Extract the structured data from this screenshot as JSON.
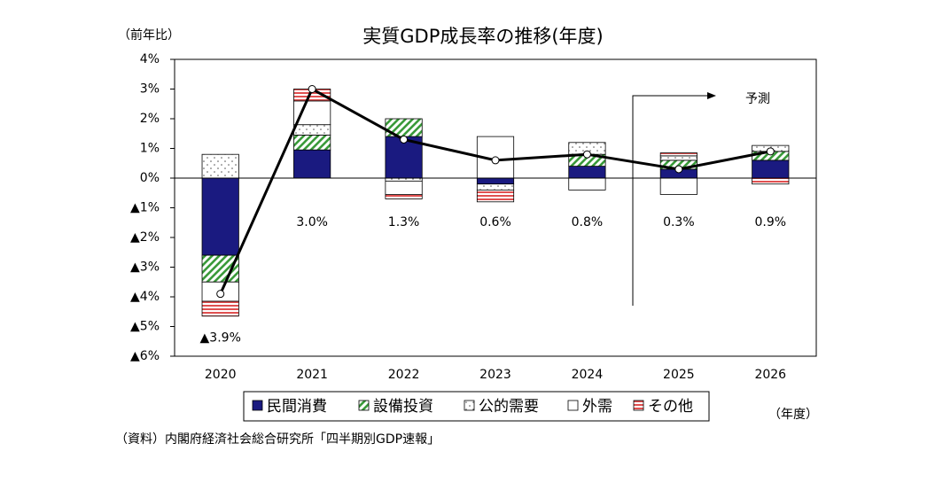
{
  "chart_data": {
    "type": "stacked-bar-line",
    "title": "実質GDP成長率の推移(年度)",
    "y_label": "（前年比）",
    "x_label": "（年度）",
    "source": "（資料）内閣府経済社会総合研究所「四半期別GDP速報」",
    "annotation": "予測",
    "categories": [
      "2020",
      "2021",
      "2022",
      "2023",
      "2024",
      "2025",
      "2026"
    ],
    "series": [
      {
        "name": "民間消費",
        "color": "#1a1a80",
        "pattern": "solid",
        "values": [
          -2.6,
          0.95,
          1.4,
          -0.2,
          0.4,
          0.3,
          0.6
        ]
      },
      {
        "name": "設備投資",
        "color": "#3a9a3a",
        "pattern": "diagonal",
        "values": [
          -0.9,
          0.5,
          0.6,
          0,
          0.4,
          0.3,
          0.3
        ]
      },
      {
        "name": "公的需要",
        "color": "#555555",
        "pattern": "dots",
        "values": [
          0.8,
          0.35,
          -0.1,
          -0.2,
          0.4,
          0.15,
          0.2
        ]
      },
      {
        "name": "外需",
        "color": "#ffffff",
        "pattern": "solid",
        "values": [
          -0.65,
          0.8,
          -0.45,
          1.4,
          -0.4,
          -0.55,
          0
        ]
      },
      {
        "name": "その他",
        "color": "#e05050",
        "pattern": "horizontal",
        "values": [
          -0.5,
          0.4,
          -0.15,
          -0.4,
          0,
          0.1,
          -0.2
        ]
      }
    ],
    "line": {
      "color": "#000000",
      "values": [
        -3.9,
        3.0,
        1.3,
        0.6,
        0.8,
        0.3,
        0.9
      ],
      "value_labels": [
        "▲3.9%",
        "3.0%",
        "1.3%",
        "0.6%",
        "0.8%",
        "0.3%",
        "0.9%"
      ]
    },
    "ylim": [
      -6,
      4
    ],
    "yticks": [
      {
        "value": 4,
        "label": "4%"
      },
      {
        "value": 3,
        "label": "3%"
      },
      {
        "value": 2,
        "label": "2%"
      },
      {
        "value": 1,
        "label": "1%"
      },
      {
        "value": 0,
        "label": "0%"
      },
      {
        "value": -1,
        "label": "▲1%"
      },
      {
        "value": -2,
        "label": "▲2%"
      },
      {
        "value": -3,
        "label": "▲3%"
      },
      {
        "value": -4,
        "label": "▲4%"
      },
      {
        "value": -5,
        "label": "▲5%"
      },
      {
        "value": -6,
        "label": "▲6%"
      }
    ]
  }
}
